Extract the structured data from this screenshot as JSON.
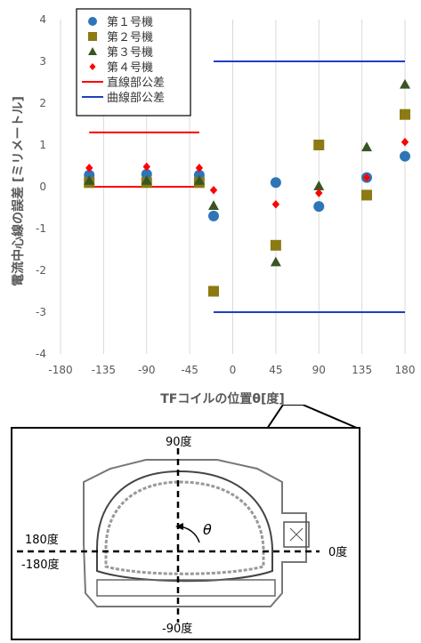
{
  "chart_data": {
    "type": "scatter",
    "xlabel": "TFコイルの位置θ[度]",
    "ylabel": "電流中心線の誤差 [ミリメートル]",
    "xlim": [
      -180,
      180
    ],
    "ylim": [
      -4,
      4
    ],
    "xticks": [
      -180,
      -135,
      -90,
      -45,
      0,
      45,
      90,
      135,
      180
    ],
    "yticks": [
      -4,
      -3,
      -2,
      -1,
      0,
      1,
      2,
      3,
      4
    ],
    "grid": "vertical",
    "legend_position": "top-left",
    "series": [
      {
        "name": "第１号機",
        "marker": "circle",
        "color": "#2E75B6",
        "x": [
          -150,
          -90,
          -35,
          -20,
          45,
          90,
          140,
          180
        ],
        "y": [
          0.28,
          0.3,
          0.28,
          -0.7,
          0.1,
          -0.47,
          0.22,
          0.73
        ]
      },
      {
        "name": "第２号機",
        "marker": "square",
        "color": "#8C7A12",
        "x": [
          -150,
          -90,
          -35,
          -20,
          45,
          90,
          140,
          180
        ],
        "y": [
          0.1,
          0.1,
          0.1,
          -2.5,
          -1.4,
          1.0,
          -0.2,
          1.73
        ]
      },
      {
        "name": "第３号機",
        "marker": "triangle",
        "color": "#375623",
        "x": [
          -150,
          -90,
          -35,
          -20,
          45,
          90,
          140,
          180
        ],
        "y": [
          0.15,
          0.15,
          0.15,
          -0.45,
          -1.8,
          0.02,
          0.95,
          2.45
        ]
      },
      {
        "name": "第４号機",
        "marker": "diamond",
        "color": "#FF0000",
        "x": [
          -150,
          -90,
          -35,
          -20,
          45,
          90,
          140,
          180
        ],
        "y": [
          0.45,
          0.48,
          0.45,
          -0.08,
          -0.42,
          -0.15,
          0.22,
          1.07
        ]
      }
    ],
    "tolerance_lines": [
      {
        "name": "直線部公差",
        "color": "#FF0000",
        "segments": [
          [
            -150,
            1.3,
            -35,
            1.3
          ],
          [
            -150,
            0.0,
            -35,
            0.0
          ]
        ]
      },
      {
        "name": "曲線部公差",
        "color": "#1F3FBF",
        "segments": [
          [
            -20,
            3.0,
            180,
            3.0
          ],
          [
            -20,
            -3.0,
            180,
            -3.0
          ]
        ]
      }
    ]
  },
  "diagram": {
    "top_label": "90度",
    "bottom_label": "-90度",
    "left_top_label": "180度",
    "left_bottom_label": "-180度",
    "right_label": "0度",
    "theta_label": "θ"
  }
}
